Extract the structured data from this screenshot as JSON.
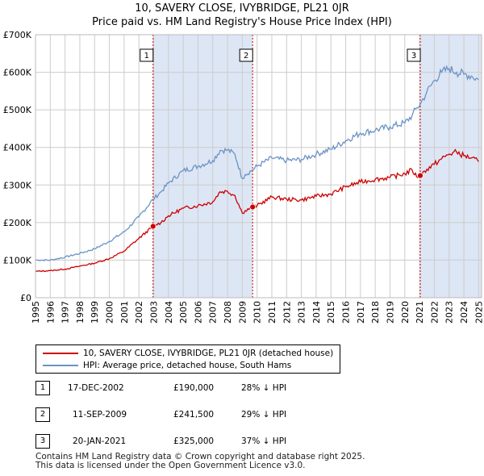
{
  "chart_data": {
    "type": "line",
    "title": "10, SAVERY CLOSE, IVYBRIDGE, PL21 0JR",
    "subtitle": "Price paid vs. HM Land Registry's House Price Index (HPI)",
    "x_range": [
      1995,
      2025.2
    ],
    "ylim": [
      0,
      700000
    ],
    "y_ticks": [
      {
        "value": 0,
        "label": "£0"
      },
      {
        "value": 100000,
        "label": "£100K"
      },
      {
        "value": 200000,
        "label": "£200K"
      },
      {
        "value": 300000,
        "label": "£300K"
      },
      {
        "value": 400000,
        "label": "£400K"
      },
      {
        "value": 500000,
        "label": "£500K"
      },
      {
        "value": 600000,
        "label": "£600K"
      },
      {
        "value": 700000,
        "label": "£700K"
      }
    ],
    "x_ticks": [
      "1995",
      "1996",
      "1997",
      "1998",
      "1999",
      "2000",
      "2001",
      "2002",
      "2003",
      "2004",
      "2005",
      "2006",
      "2007",
      "2008",
      "2009",
      "2010",
      "2011",
      "2012",
      "2013",
      "2014",
      "2015",
      "2016",
      "2017",
      "2018",
      "2019",
      "2020",
      "2021",
      "2022",
      "2023",
      "2024",
      "2025"
    ],
    "grid": true,
    "colors": {
      "property": "#cc0000",
      "hpi": "#6b93c6",
      "shade": "#dde6f5",
      "grid": "#cccccc",
      "marker_line": "#cc0000"
    },
    "series": [
      {
        "name": "10, SAVERY CLOSE, IVYBRIDGE, PL21 0JR (detached house)",
        "key": "property",
        "x": [
          1995,
          1996,
          1997,
          1998,
          1999,
          2000,
          2001,
          2002,
          2002.96,
          2003.5,
          2004,
          2005,
          2006,
          2007,
          2007.5,
          2008,
          2008.5,
          2009,
          2009.2,
          2009.7,
          2010,
          2011,
          2012,
          2013,
          2014,
          2015,
          2016,
          2017,
          2018,
          2019,
          2020,
          2020.5,
          2020.8,
          2021.05,
          2021.5,
          2022,
          2022.5,
          2023,
          2023.5,
          2024,
          2024.5,
          2025
        ],
        "values": [
          70000,
          72000,
          76000,
          84000,
          92000,
          104000,
          124000,
          158000,
          190000,
          200000,
          218000,
          238000,
          245000,
          255000,
          282000,
          283000,
          272000,
          225000,
          232000,
          241500,
          245000,
          268000,
          262000,
          260000,
          270000,
          276000,
          295000,
          308000,
          315000,
          320000,
          330000,
          340000,
          322000,
          325000,
          342000,
          355000,
          370000,
          382000,
          388000,
          378000,
          372000,
          362000
        ]
      },
      {
        "name": "HPI: Average price, detached house, South Hams",
        "key": "hpi",
        "x": [
          1995,
          1996,
          1997,
          1998,
          1999,
          2000,
          2001,
          2002,
          2002.96,
          2003.5,
          2004,
          2005,
          2006,
          2007,
          2007.5,
          2008,
          2008.5,
          2009,
          2009.2,
          2009.7,
          2010,
          2011,
          2012,
          2013,
          2014,
          2015,
          2016,
          2017,
          2018,
          2019,
          2020,
          2020.5,
          2020.8,
          2021.05,
          2021.5,
          2022,
          2022.5,
          2023,
          2023.5,
          2024,
          2024.5,
          2025
        ],
        "values": [
          100000,
          100000,
          108000,
          118000,
          130000,
          150000,
          175000,
          215000,
          262000,
          282000,
          305000,
          338000,
          350000,
          365000,
          392000,
          393000,
          382000,
          317000,
          328000,
          340000,
          350000,
          372000,
          365000,
          368000,
          382000,
          395000,
          418000,
          438000,
          446000,
          455000,
          465000,
          485000,
          505000,
          515000,
          548000,
          578000,
          600000,
          610000,
          600000,
          595000,
          590000,
          580000
        ]
      }
    ],
    "sales": [
      {
        "num": "1",
        "x": 2002.96,
        "price": 190000
      },
      {
        "num": "2",
        "x": 2009.7,
        "price": 241500
      },
      {
        "num": "3",
        "x": 2021.05,
        "price": 325000
      }
    ],
    "shaded_ranges": [
      [
        2002.96,
        2009.7
      ],
      [
        2021.05,
        2025.2
      ]
    ]
  },
  "legend": {
    "property_label": "10, SAVERY CLOSE, IVYBRIDGE, PL21 0JR (detached house)",
    "hpi_label": "HPI: Average price, detached house, South Hams"
  },
  "sales_table": [
    {
      "num": "1",
      "date": "17-DEC-2002",
      "price": "£190,000",
      "hpi": "28% ↓ HPI"
    },
    {
      "num": "2",
      "date": "11-SEP-2009",
      "price": "£241,500",
      "hpi": "29% ↓ HPI"
    },
    {
      "num": "3",
      "date": "20-JAN-2021",
      "price": "£325,000",
      "hpi": "37% ↓ HPI"
    }
  ],
  "footer": {
    "line1": "Contains HM Land Registry data © Crown copyright and database right 2025.",
    "line2": "This data is licensed under the Open Government Licence v3.0."
  }
}
